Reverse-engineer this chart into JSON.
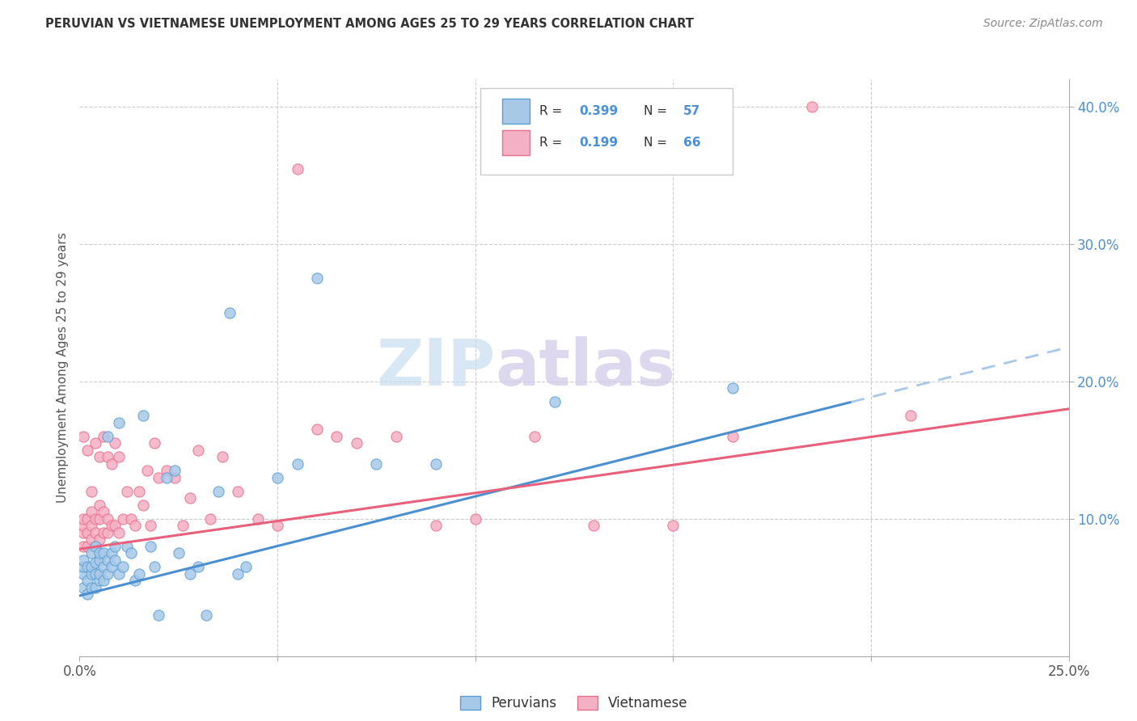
{
  "title": "PERUVIAN VS VIETNAMESE UNEMPLOYMENT AMONG AGES 25 TO 29 YEARS CORRELATION CHART",
  "source": "Source: ZipAtlas.com",
  "ylabel": "Unemployment Among Ages 25 to 29 years",
  "xlim": [
    0.0,
    0.25
  ],
  "ylim": [
    0.0,
    0.42
  ],
  "peruvian_color": "#a8c8e8",
  "vietnamese_color": "#f4b0c4",
  "peruvian_edge_color": "#5a9fd4",
  "vietnamese_edge_color": "#e8708a",
  "peruvian_line_color": "#4a8fd0",
  "vietnamese_line_color": "#e8607a",
  "peruvian_line_dash_color": "#a8c8e8",
  "right_tick_color": "#5090d0",
  "watermark_zip_color": "#c8ddf0",
  "watermark_atlas_color": "#d0c8e8",
  "peruvians_x": [
    0.001,
    0.001,
    0.001,
    0.001,
    0.002,
    0.002,
    0.002,
    0.003,
    0.003,
    0.003,
    0.003,
    0.004,
    0.004,
    0.004,
    0.004,
    0.005,
    0.005,
    0.005,
    0.005,
    0.006,
    0.006,
    0.006,
    0.007,
    0.007,
    0.007,
    0.008,
    0.008,
    0.009,
    0.009,
    0.01,
    0.01,
    0.011,
    0.012,
    0.013,
    0.014,
    0.015,
    0.016,
    0.018,
    0.019,
    0.02,
    0.022,
    0.024,
    0.025,
    0.028,
    0.03,
    0.032,
    0.035,
    0.038,
    0.04,
    0.042,
    0.05,
    0.055,
    0.06,
    0.075,
    0.09,
    0.12,
    0.165
  ],
  "peruvians_y": [
    0.05,
    0.06,
    0.065,
    0.07,
    0.045,
    0.055,
    0.065,
    0.05,
    0.06,
    0.065,
    0.075,
    0.05,
    0.06,
    0.068,
    0.08,
    0.055,
    0.06,
    0.07,
    0.075,
    0.055,
    0.065,
    0.075,
    0.06,
    0.07,
    0.16,
    0.065,
    0.075,
    0.07,
    0.08,
    0.06,
    0.17,
    0.065,
    0.08,
    0.075,
    0.055,
    0.06,
    0.175,
    0.08,
    0.065,
    0.03,
    0.13,
    0.135,
    0.075,
    0.06,
    0.065,
    0.03,
    0.12,
    0.25,
    0.06,
    0.065,
    0.13,
    0.14,
    0.275,
    0.14,
    0.14,
    0.185,
    0.195
  ],
  "vietnamese_x": [
    0.001,
    0.001,
    0.001,
    0.001,
    0.001,
    0.002,
    0.002,
    0.002,
    0.002,
    0.003,
    0.003,
    0.003,
    0.003,
    0.004,
    0.004,
    0.004,
    0.004,
    0.005,
    0.005,
    0.005,
    0.005,
    0.006,
    0.006,
    0.006,
    0.007,
    0.007,
    0.007,
    0.008,
    0.008,
    0.009,
    0.009,
    0.01,
    0.01,
    0.011,
    0.012,
    0.013,
    0.014,
    0.015,
    0.016,
    0.017,
    0.018,
    0.019,
    0.02,
    0.022,
    0.024,
    0.026,
    0.028,
    0.03,
    0.033,
    0.036,
    0.04,
    0.045,
    0.05,
    0.055,
    0.06,
    0.065,
    0.07,
    0.08,
    0.09,
    0.1,
    0.115,
    0.13,
    0.15,
    0.165,
    0.185,
    0.21
  ],
  "vietnamese_y": [
    0.08,
    0.09,
    0.095,
    0.1,
    0.16,
    0.08,
    0.09,
    0.1,
    0.15,
    0.085,
    0.095,
    0.105,
    0.12,
    0.08,
    0.09,
    0.1,
    0.155,
    0.085,
    0.1,
    0.11,
    0.145,
    0.09,
    0.105,
    0.16,
    0.09,
    0.1,
    0.145,
    0.095,
    0.14,
    0.095,
    0.155,
    0.09,
    0.145,
    0.1,
    0.12,
    0.1,
    0.095,
    0.12,
    0.11,
    0.135,
    0.095,
    0.155,
    0.13,
    0.135,
    0.13,
    0.095,
    0.115,
    0.15,
    0.1,
    0.145,
    0.12,
    0.1,
    0.095,
    0.355,
    0.165,
    0.16,
    0.155,
    0.16,
    0.095,
    0.1,
    0.16,
    0.095,
    0.095,
    0.16,
    0.4,
    0.175
  ],
  "line_peru_x0": 0.0,
  "line_peru_y0": 0.044,
  "line_peru_x1": 0.195,
  "line_peru_y1": 0.185,
  "line_peru_dash_x0": 0.195,
  "line_peru_dash_y0": 0.185,
  "line_peru_dash_x1": 0.25,
  "line_peru_dash_y1": 0.225,
  "line_viet_x0": 0.0,
  "line_viet_y0": 0.078,
  "line_viet_x1": 0.25,
  "line_viet_y1": 0.18
}
